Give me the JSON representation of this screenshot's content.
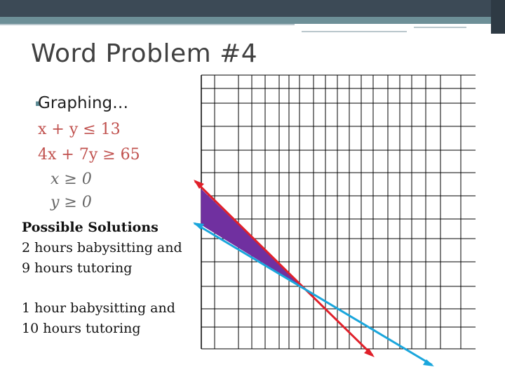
{
  "slide": {
    "title": "Word Problem #4",
    "heading": "Graphing…",
    "inequalities": [
      "x + y ≤ 13",
      "4x + 7y ≥ 65"
    ],
    "nonnegativity": [
      "x ≥ 0",
      "y ≥ 0"
    ],
    "solutions": {
      "heading": "Possible Solutions",
      "line1a": "2 hours babysitting and",
      "line1b": "9 hours tutoring",
      "line2a": "1 hour babysitting and",
      "line2b": "10 hours tutoring"
    }
  },
  "colors": {
    "title_text": "#404040",
    "inequality_text": "#c0504d",
    "red_line": "#e0202a",
    "blue_line": "#1aa6dc",
    "feasible_region": "#7030a0",
    "grid": "#000000"
  }
}
